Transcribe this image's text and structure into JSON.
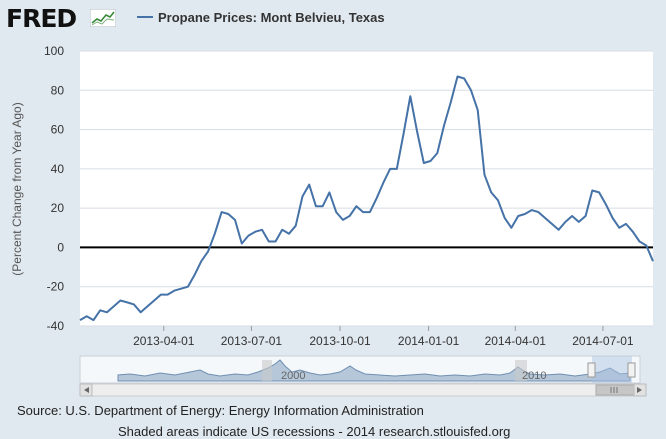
{
  "header": {
    "logo_text": "FRED",
    "logo_icon": "fred-mini-chart-icon"
  },
  "colors": {
    "series": "#4572a7",
    "background": "#e1e9f0",
    "plot_background": "#ffffff",
    "zero_line": "#000000"
  },
  "chart_data": {
    "type": "line",
    "title": "",
    "xlabel": "",
    "ylabel": "(Percent Change from Year Ago)",
    "ylim": [
      -40,
      100
    ],
    "yticks": [
      -40,
      -20,
      0,
      20,
      40,
      60,
      80,
      100
    ],
    "grid": true,
    "legend_position": "top",
    "x_tick_labels": [
      "2013-04-01",
      "2013-07-01",
      "2013-10-01",
      "2014-01-01",
      "2014-04-01",
      "2014-07-01"
    ],
    "series": [
      {
        "name": "Propane Prices: Mont Belvieu, Texas",
        "color": "#4572a7",
        "x": [
          "2013-01-04",
          "2013-01-11",
          "2013-01-18",
          "2013-01-25",
          "2013-02-01",
          "2013-02-08",
          "2013-02-15",
          "2013-02-22",
          "2013-03-01",
          "2013-03-08",
          "2013-03-15",
          "2013-03-22",
          "2013-03-29",
          "2013-04-05",
          "2013-04-12",
          "2013-04-19",
          "2013-04-26",
          "2013-05-03",
          "2013-05-10",
          "2013-05-17",
          "2013-05-24",
          "2013-05-31",
          "2013-06-07",
          "2013-06-14",
          "2013-06-21",
          "2013-06-28",
          "2013-07-05",
          "2013-07-12",
          "2013-07-19",
          "2013-07-26",
          "2013-08-02",
          "2013-08-09",
          "2013-08-16",
          "2013-08-23",
          "2013-08-30",
          "2013-09-06",
          "2013-09-13",
          "2013-09-20",
          "2013-09-27",
          "2013-10-04",
          "2013-10-11",
          "2013-10-18",
          "2013-10-25",
          "2013-11-01",
          "2013-11-08",
          "2013-11-15",
          "2013-11-22",
          "2013-11-29",
          "2013-12-06",
          "2013-12-13",
          "2013-12-20",
          "2013-12-27",
          "2014-01-03",
          "2014-01-10",
          "2014-01-17",
          "2014-01-24",
          "2014-01-31",
          "2014-02-07",
          "2014-02-14",
          "2014-02-21",
          "2014-02-28",
          "2014-03-07",
          "2014-03-14",
          "2014-03-21",
          "2014-03-28",
          "2014-04-04",
          "2014-04-11",
          "2014-04-18",
          "2014-04-25",
          "2014-05-02",
          "2014-05-09",
          "2014-05-16",
          "2014-05-23",
          "2014-05-30",
          "2014-06-06",
          "2014-06-13",
          "2014-06-20",
          "2014-06-27",
          "2014-07-04",
          "2014-07-11",
          "2014-07-18",
          "2014-07-25",
          "2014-08-01",
          "2014-08-08",
          "2014-08-15",
          "2014-08-22"
        ],
        "values": [
          -37,
          -35,
          -37,
          -32,
          -33,
          -30,
          -27,
          -28,
          -29,
          -33,
          -30,
          -27,
          -24,
          -24,
          -22,
          -21,
          -20,
          -14,
          -7,
          -2,
          7,
          18,
          17,
          14,
          2,
          6,
          8,
          9,
          3,
          3,
          9,
          7,
          11,
          26,
          32,
          21,
          21,
          28,
          18,
          14,
          16,
          21,
          18,
          18,
          25,
          33,
          40,
          40,
          58,
          77,
          59,
          43,
          44,
          48,
          62,
          74,
          87,
          86,
          80,
          70,
          37,
          28,
          24,
          15,
          10,
          16,
          17,
          19,
          18,
          15,
          12,
          9,
          13,
          16,
          13,
          16,
          29,
          28,
          22,
          15,
          10,
          12,
          8,
          3,
          1,
          -7
        ]
      }
    ]
  },
  "navigator": {
    "year_labels": [
      "2000",
      "2010"
    ]
  },
  "footer": {
    "source": "Source: U.S. Department of Energy: Energy Information Administration",
    "recession_note": "Shaded areas indicate US recessions - 2014 research.stlouisfed.org"
  }
}
